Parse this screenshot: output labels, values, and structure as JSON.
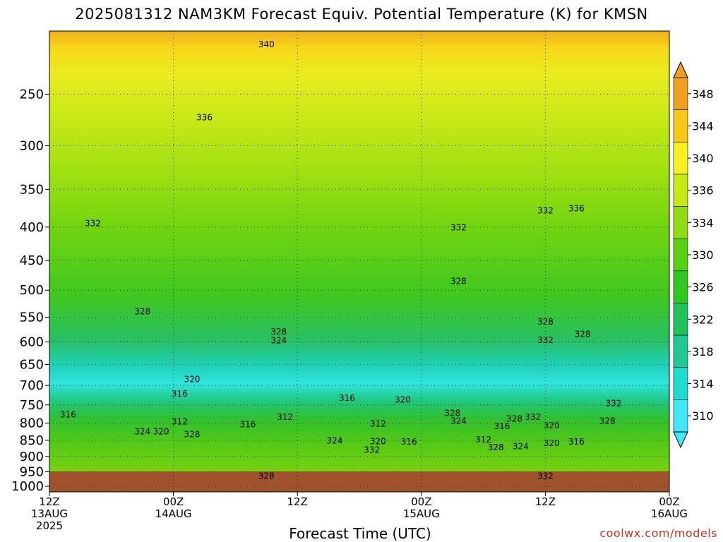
{
  "title": "2025081312 NAM3KM Forecast Equiv. Potential Temperature (K) for KMSN",
  "credit": "coolwx.com/models",
  "chart_data": {
    "type": "heatmap",
    "title": "2025081312 NAM3KM Forecast Equiv. Potential Temperature (K) for KMSN",
    "xlabel": "Forecast Time (UTC)",
    "ylabel": "",
    "xlim": [
      "2025-08-13 12Z",
      "2025-08-16 00Z"
    ],
    "ylim": [
      1020,
      200
    ],
    "y_scale": "log-pressure",
    "grid": true,
    "y_ticks": [
      250,
      300,
      350,
      400,
      450,
      500,
      550,
      600,
      650,
      700,
      750,
      800,
      850,
      900,
      950,
      1000
    ],
    "x_ticks": [
      {
        "line1": "12Z",
        "line2": "13AUG",
        "line3": "2025"
      },
      {
        "line1": "00Z",
        "line2": "14AUG",
        "line3": ""
      },
      {
        "line1": "12Z",
        "line2": "",
        "line3": ""
      },
      {
        "line1": "00Z",
        "line2": "15AUG",
        "line3": ""
      },
      {
        "line1": "12Z",
        "line2": "",
        "line3": ""
      },
      {
        "line1": "00Z",
        "line2": "16AUG",
        "line3": ""
      }
    ],
    "colorbar": {
      "labels": [
        "348",
        "344",
        "340",
        "336",
        "334",
        "330",
        "326",
        "322",
        "318",
        "314",
        "310"
      ],
      "colors": [
        "#f0a020",
        "#f8c818",
        "#f8f020",
        "#c8e818",
        "#90dc10",
        "#58d010",
        "#30c820",
        "#20c05a",
        "#20c898",
        "#20dcd0",
        "#40e8f8"
      ]
    },
    "contour_labels": [
      {
        "text": "340",
        "t": 0.35,
        "p": 210
      },
      {
        "text": "336",
        "t": 0.25,
        "p": 272
      },
      {
        "text": "332",
        "t": 0.07,
        "p": 395
      },
      {
        "text": "332",
        "t": 0.66,
        "p": 401
      },
      {
        "text": "332",
        "t": 0.8,
        "p": 378
      },
      {
        "text": "336",
        "t": 0.85,
        "p": 375
      },
      {
        "text": "328",
        "t": 0.15,
        "p": 540
      },
      {
        "text": "328",
        "t": 0.37,
        "p": 580
      },
      {
        "text": "324",
        "t": 0.37,
        "p": 598
      },
      {
        "text": "328",
        "t": 0.66,
        "p": 485
      },
      {
        "text": "328",
        "t": 0.8,
        "p": 560
      },
      {
        "text": "332",
        "t": 0.8,
        "p": 597
      },
      {
        "text": "328",
        "t": 0.86,
        "p": 585
      },
      {
        "text": "320",
        "t": 0.23,
        "p": 686
      },
      {
        "text": "316",
        "t": 0.21,
        "p": 722
      },
      {
        "text": "316",
        "t": 0.48,
        "p": 733
      },
      {
        "text": "320",
        "t": 0.57,
        "p": 737
      },
      {
        "text": "316",
        "t": 0.03,
        "p": 777
      },
      {
        "text": "312",
        "t": 0.21,
        "p": 797
      },
      {
        "text": "312",
        "t": 0.38,
        "p": 784
      },
      {
        "text": "316",
        "t": 0.32,
        "p": 805
      },
      {
        "text": "312",
        "t": 0.53,
        "p": 803
      },
      {
        "text": "324",
        "t": 0.15,
        "p": 825
      },
      {
        "text": "320",
        "t": 0.18,
        "p": 825
      },
      {
        "text": "328",
        "t": 0.23,
        "p": 833
      },
      {
        "text": "324",
        "t": 0.46,
        "p": 852
      },
      {
        "text": "320",
        "t": 0.53,
        "p": 854
      },
      {
        "text": "316",
        "t": 0.58,
        "p": 855
      },
      {
        "text": "332",
        "t": 0.52,
        "p": 880
      },
      {
        "text": "328",
        "t": 0.65,
        "p": 773
      },
      {
        "text": "324",
        "t": 0.66,
        "p": 795
      },
      {
        "text": "328",
        "t": 0.75,
        "p": 789
      },
      {
        "text": "332",
        "t": 0.78,
        "p": 784
      },
      {
        "text": "316",
        "t": 0.73,
        "p": 810
      },
      {
        "text": "320",
        "t": 0.81,
        "p": 808
      },
      {
        "text": "328",
        "t": 0.9,
        "p": 795
      },
      {
        "text": "332",
        "t": 0.91,
        "p": 747
      },
      {
        "text": "312",
        "t": 0.7,
        "p": 849
      },
      {
        "text": "328",
        "t": 0.72,
        "p": 873
      },
      {
        "text": "324",
        "t": 0.76,
        "p": 870
      },
      {
        "text": "320",
        "t": 0.81,
        "p": 860
      },
      {
        "text": "316",
        "t": 0.85,
        "p": 856
      },
      {
        "text": "328",
        "t": 0.35,
        "p": 965
      },
      {
        "text": "332",
        "t": 0.8,
        "p": 965
      }
    ]
  }
}
